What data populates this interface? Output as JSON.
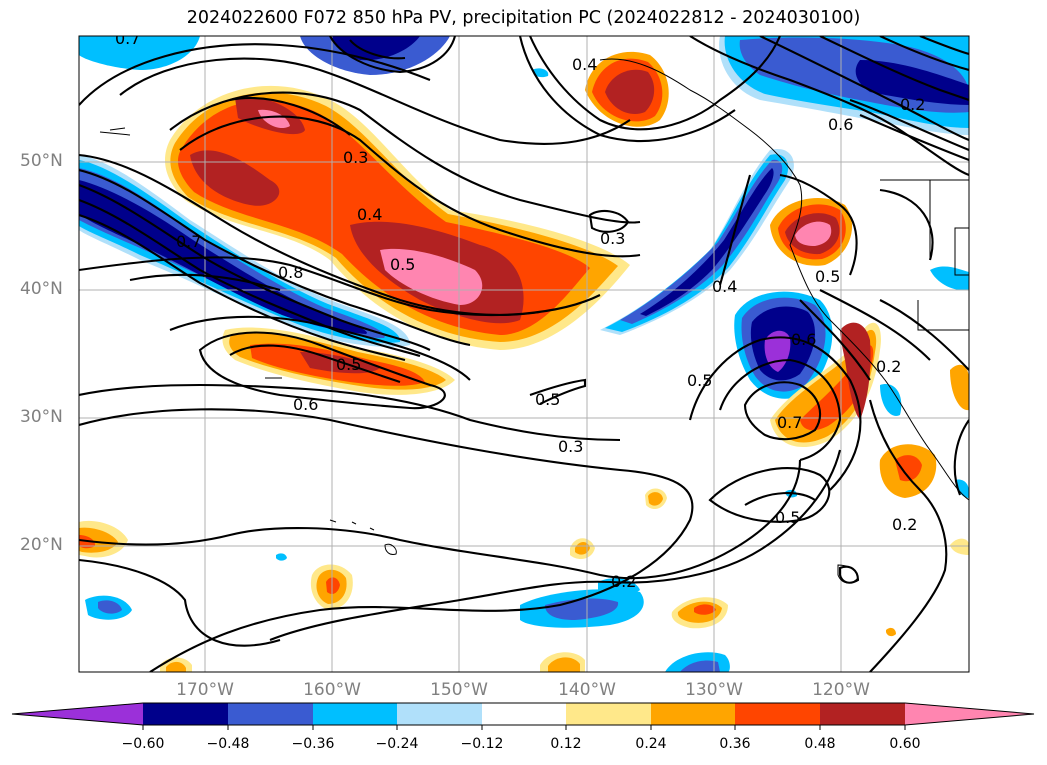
{
  "title": "2024022600 F072 850 hPa PV, precipitation PC (2024022812 - 2024030100)",
  "lat_labels": [
    "50°N",
    "40°N",
    "30°N",
    "20°N"
  ],
  "lon_labels": [
    "170°W",
    "160°W",
    "150°W",
    "140°W",
    "130°W",
    "120°W"
  ],
  "colorbar": {
    "ticks": [
      "−0.60",
      "−0.48",
      "−0.36",
      "−0.24",
      "−0.12",
      "0.12",
      "0.24",
      "0.36",
      "0.48",
      "0.60"
    ],
    "colors": [
      "#9b30d9",
      "#00008b",
      "#3a5bd1",
      "#00bfff",
      "#b0e0fa",
      "#ffffff",
      "#ffe88a",
      "#ffa500",
      "#ff4500",
      "#b22222",
      "#ff85b0"
    ]
  },
  "contour_labels": [
    "0.7",
    "0.4",
    "0.3",
    "0.4",
    "0.5",
    "0.7",
    "0.8",
    "0.5",
    "0.6",
    "0.5",
    "0.3",
    "0.3",
    "0.4",
    "0.5",
    "0.6",
    "0.7",
    "0.5",
    "0.2",
    "0.2",
    "0.5",
    "0.2",
    "0.6",
    "0.2"
  ]
}
